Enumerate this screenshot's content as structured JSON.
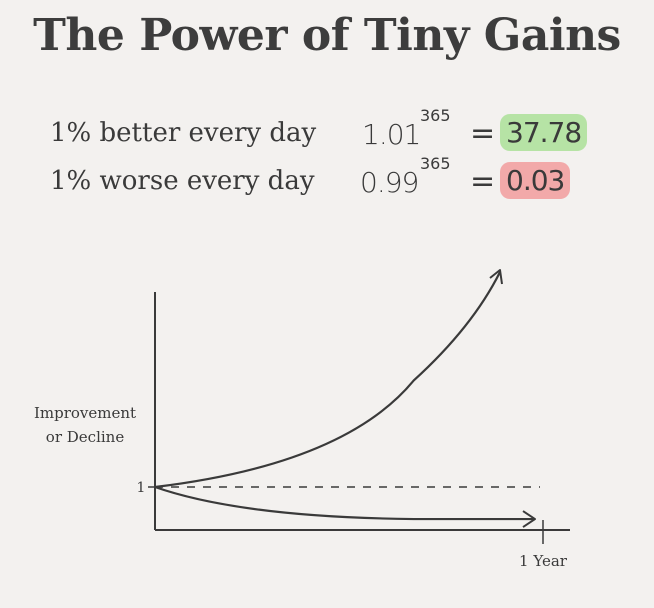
{
  "title": "The Power of Tiny Gains",
  "equations": [
    {
      "label": "1% better every day",
      "base": "1.01",
      "exponent": "365",
      "equals": "=",
      "result": "37.78",
      "highlight": "#b6e3a5"
    },
    {
      "label": "1% worse every day",
      "base": "0.99",
      "exponent": "365",
      "equals": "=",
      "result": "0.03",
      "highlight": "#f2a9a9"
    }
  ],
  "chart_data": {
    "type": "line",
    "ylabel_lines": [
      "Improvement",
      "or Decline"
    ],
    "y_tick_label": "1",
    "x_tick_label": "1 Year",
    "baseline": 1,
    "series": [
      {
        "x": [
          0,
          0.25,
          0.5,
          0.75,
          1
        ],
        "y": [
          1,
          1.52,
          2.35,
          3.8,
          6.65
        ]
      },
      {
        "x": [
          0,
          0.25,
          0.5,
          0.75,
          1
        ],
        "y": [
          1,
          0.82,
          0.73,
          0.68,
          0.65
        ]
      }
    ]
  }
}
